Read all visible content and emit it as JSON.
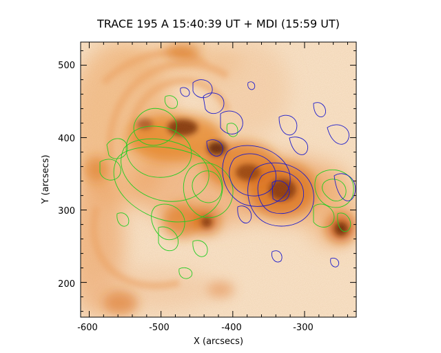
{
  "figure": {
    "title": "TRACE 195 A 15:40:39 UT + MDI (15:59 UT)",
    "xlabel": "X (arcsecs)",
    "ylabel": "Y (arcsecs)",
    "xticks": [
      "-600",
      "-500",
      "-400",
      "-300"
    ],
    "yticks": [
      "200",
      "300",
      "400",
      "500"
    ],
    "xrange": [
      -612,
      -228
    ],
    "yrange": [
      152,
      532
    ]
  },
  "image": {
    "description_colors": {
      "background": "#fbe6cf",
      "emission_mid": "#f4a260",
      "emission_strong": "#e07010",
      "emission_core": "#5a1800"
    },
    "contour_colors": {
      "positive_polarity": "#22cc22",
      "negative_polarity": "#1a1acc"
    }
  }
}
